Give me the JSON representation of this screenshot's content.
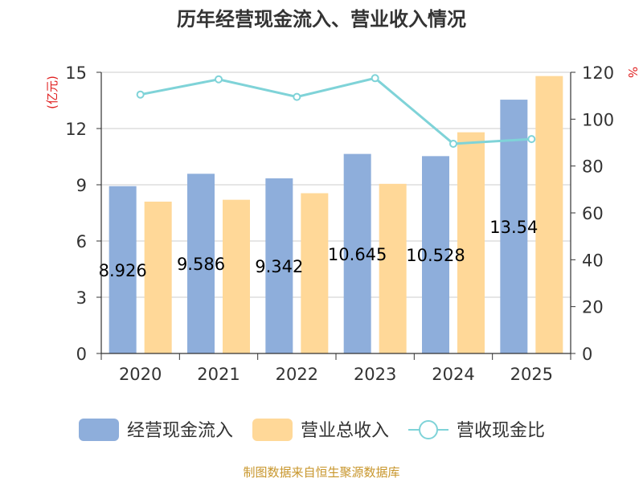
{
  "chart_data": {
    "type": "bar",
    "title": "历年经营现金流入、营业收入情况",
    "categories": [
      "2020",
      "2021",
      "2022",
      "2023",
      "2024",
      "2025"
    ],
    "series": [
      {
        "name": "经营现金流入",
        "type": "bar",
        "axis": "left",
        "color": "#8eaedb",
        "values": [
          8.926,
          9.586,
          9.342,
          10.645,
          10.528,
          13.54
        ],
        "labels": [
          "8.926",
          "9.586",
          "9.342",
          "10.645",
          "10.528",
          "13.54"
        ]
      },
      {
        "name": "营业总收入",
        "type": "bar",
        "axis": "left",
        "color": "#ffd898",
        "values": [
          8.1,
          8.2,
          8.55,
          9.05,
          11.8,
          14.8
        ]
      },
      {
        "name": "营收现金比",
        "type": "line",
        "axis": "right",
        "color": "#7fd3d8",
        "values": [
          110.5,
          117,
          109.5,
          117.5,
          89.5,
          91.5
        ]
      }
    ],
    "ylabel_left": "(亿元)",
    "ylabel_right": "%",
    "ylim_left": [
      0,
      15
    ],
    "yticks_left": [
      "0",
      "3",
      "6",
      "9",
      "12",
      "15"
    ],
    "ylim_right": [
      0,
      120
    ],
    "yticks_right": [
      "0",
      "20",
      "40",
      "60",
      "80",
      "100",
      "120"
    ],
    "legend": "bottom",
    "grid": true
  },
  "source_note": "制图数据来自恒生聚源数据库",
  "colors": {
    "title": "#333333",
    "axis_label": "#e02020",
    "source": "#c8962c",
    "grid": "#cccccc",
    "axis": "#333333"
  }
}
